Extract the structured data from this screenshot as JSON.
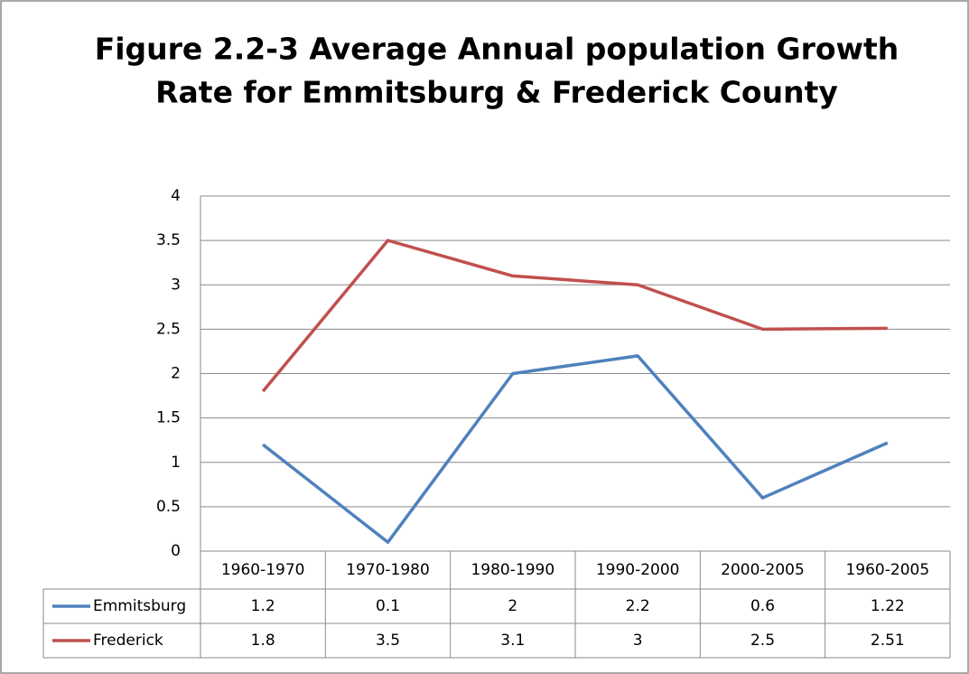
{
  "chart_data": {
    "type": "line",
    "title": [
      "Figure 2.2-3 Average Annual population Growth",
      "Rate for Emmitsburg & Frederick County"
    ],
    "categories": [
      "1960-1970",
      "1970-1980",
      "1980-1990",
      "1990-2000",
      "2000-2005",
      "1960-2005"
    ],
    "series": [
      {
        "name": "Emmitsburg",
        "color": "#4f81bd",
        "values": [
          1.2,
          0.1,
          2,
          2.2,
          0.6,
          1.22
        ]
      },
      {
        "name": "Frederick",
        "color": "#c0504d",
        "values": [
          1.8,
          3.5,
          3.1,
          3,
          2.5,
          2.51
        ]
      }
    ],
    "ylim": [
      0,
      4
    ],
    "yticks": [
      0,
      0.5,
      1,
      1.5,
      2,
      2.5,
      3,
      3.5,
      4
    ],
    "grid": true,
    "data_table": true
  }
}
